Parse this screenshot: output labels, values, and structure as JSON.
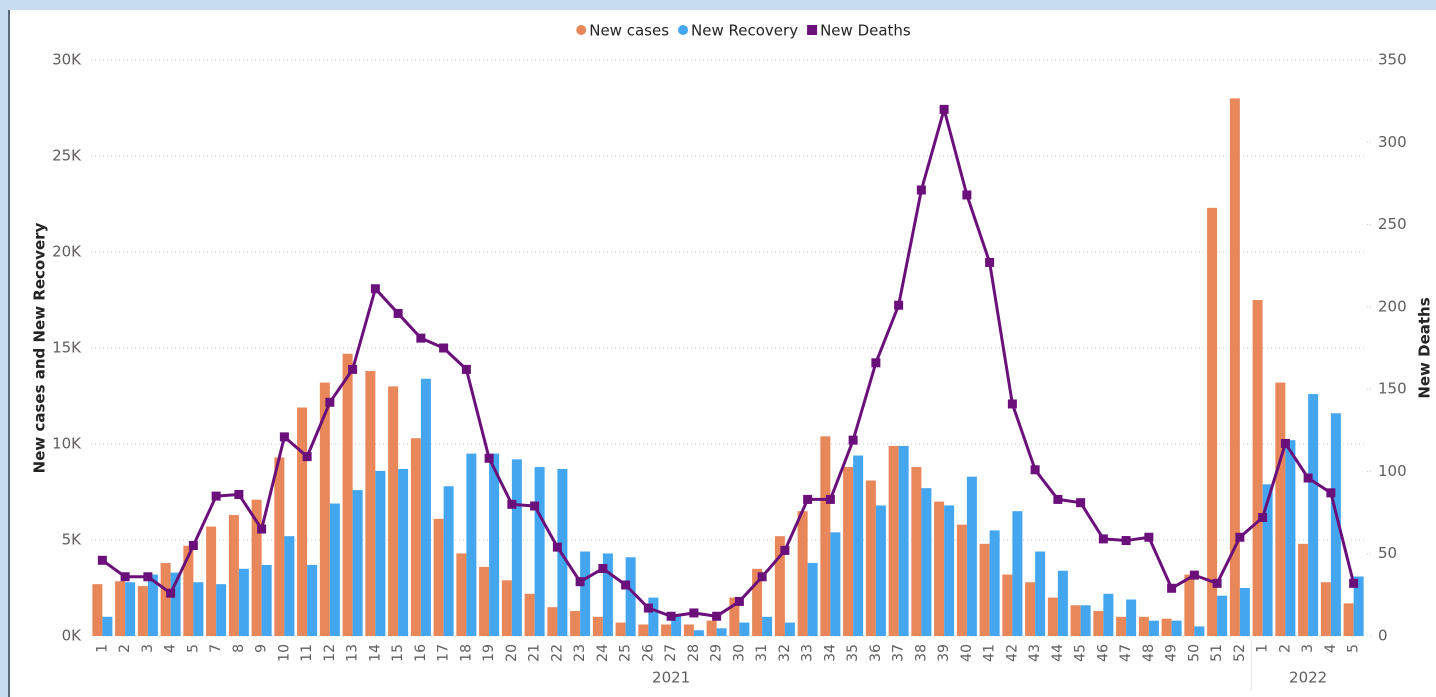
{
  "chart_data": {
    "type": "combo",
    "categories": [
      "1",
      "2",
      "3",
      "4",
      "5",
      "7",
      "8",
      "9",
      "10",
      "11",
      "12",
      "13",
      "14",
      "15",
      "16",
      "17",
      "18",
      "19",
      "20",
      "21",
      "22",
      "23",
      "24",
      "25",
      "26",
      "27",
      "28",
      "29",
      "30",
      "31",
      "32",
      "33",
      "34",
      "35",
      "36",
      "37",
      "38",
      "39",
      "40",
      "41",
      "42",
      "43",
      "44",
      "45",
      "46",
      "47",
      "48",
      "49",
      "50",
      "51",
      "52",
      "1",
      "2",
      "3",
      "4",
      "5"
    ],
    "category_groups": [
      {
        "label": "2021",
        "span": 51
      },
      {
        "label": "2022",
        "span": 5
      }
    ],
    "series": [
      {
        "name": "New cases",
        "type": "bar",
        "color": "#e8875a",
        "values": [
          2700,
          2850,
          2600,
          3800,
          4700,
          5700,
          6300,
          7100,
          9300,
          11900,
          13200,
          14700,
          13800,
          13000,
          10300,
          6100,
          4300,
          3600,
          2900,
          2200,
          1500,
          1300,
          1000,
          700,
          600,
          600,
          600,
          800,
          2000,
          3500,
          5200,
          6500,
          10400,
          8800,
          8100,
          9900,
          8800,
          7000,
          5800,
          4800,
          3200,
          2800,
          2000,
          1600,
          1300,
          1000,
          1000,
          900,
          3200,
          22300,
          28000,
          17500,
          13200,
          4800,
          2800,
          1700
        ]
      },
      {
        "name": "New Recovery",
        "type": "bar",
        "color": "#45a6f0",
        "values": [
          1000,
          2800,
          3200,
          3300,
          2800,
          2700,
          3500,
          3700,
          5200,
          3700,
          6900,
          7600,
          8600,
          8700,
          13400,
          7800,
          9500,
          9500,
          9200,
          8800,
          8700,
          4400,
          4300,
          4100,
          2000,
          1100,
          300,
          400,
          700,
          1000,
          700,
          3800,
          5400,
          9400,
          6800,
          9900,
          7700,
          6800,
          8300,
          5500,
          6500,
          4400,
          3400,
          1600,
          2200,
          1900,
          800,
          800,
          500,
          2100,
          2500,
          7900,
          10200,
          12600,
          11600,
          3100
        ]
      },
      {
        "name": "New Deaths",
        "type": "line",
        "axis": "y2",
        "color": "#6b0f7a",
        "values": [
          46,
          36,
          36,
          26,
          55,
          85,
          86,
          65,
          121,
          109,
          142,
          162,
          211,
          196,
          181,
          175,
          162,
          108,
          80,
          79,
          54,
          33,
          41,
          31,
          17,
          12,
          14,
          12,
          21,
          36,
          52,
          83,
          83,
          119,
          166,
          201,
          271,
          320,
          268,
          227,
          141,
          101,
          83,
          81,
          59,
          58,
          60,
          29,
          37,
          32,
          60,
          72,
          117,
          96,
          87,
          32
        ]
      }
    ],
    "ylabel": "New cases and New Recovery",
    "y2label": "New Deaths",
    "ylim": [
      0,
      30000
    ],
    "yticks": [
      {
        "value": 0,
        "label": "0K"
      },
      {
        "value": 5000,
        "label": "5K"
      },
      {
        "value": 10000,
        "label": "10K"
      },
      {
        "value": 15000,
        "label": "15K"
      },
      {
        "value": 20000,
        "label": "20K"
      },
      {
        "value": 25000,
        "label": "25K"
      },
      {
        "value": 30000,
        "label": "30K"
      }
    ],
    "y2lim": [
      0,
      350
    ],
    "y2ticks": [
      0,
      50,
      100,
      150,
      200,
      250,
      300,
      350
    ],
    "grid": true,
    "legend": "top"
  }
}
